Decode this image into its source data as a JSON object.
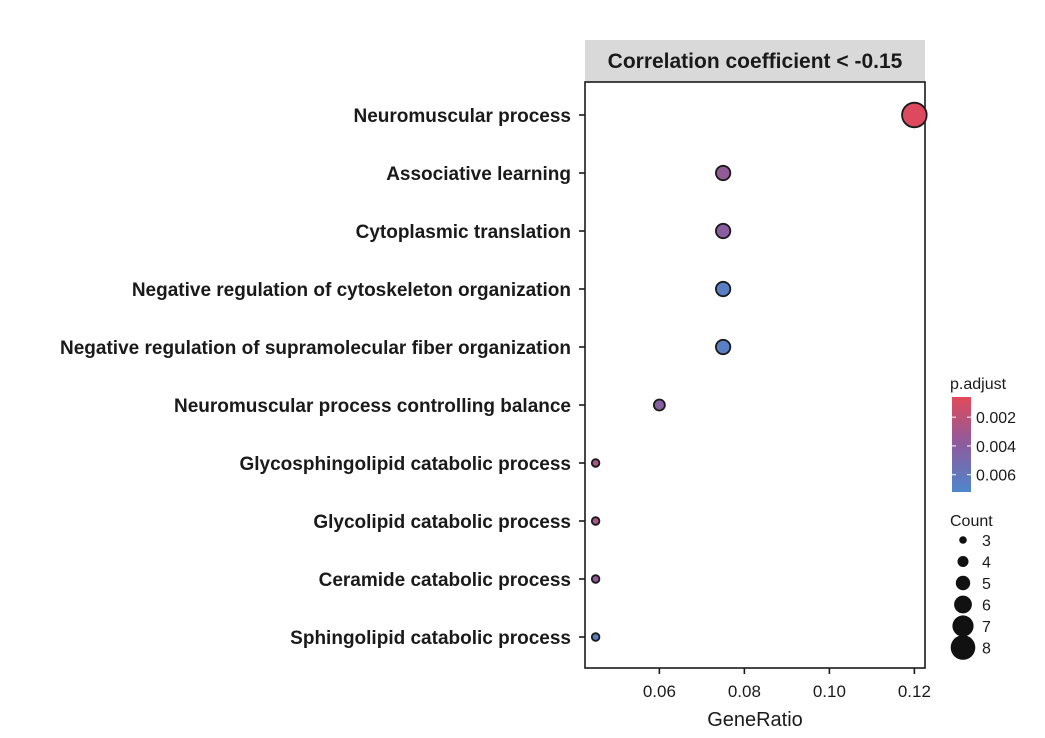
{
  "chart_data": {
    "type": "scatter",
    "facet_title": "Correlation coefficient < -0.15",
    "xlabel": "GeneRatio",
    "ylabel": "",
    "xlim": [
      0.0425,
      0.1225
    ],
    "xticks": [
      0.06,
      0.08,
      0.1,
      0.12
    ],
    "xtick_labels": [
      "0.06",
      "0.08",
      "0.10",
      "0.12"
    ],
    "grid": false,
    "legend_position": "right",
    "categories": [
      "Neuromuscular process",
      "Associative learning",
      "Cytoplasmic translation",
      "Negative regulation of cytoskeleton organization",
      "Negative regulation of supramolecular fiber organization",
      "Neuromuscular process controlling balance",
      "Glycosphingolipid catabolic process",
      "Glycolipid catabolic process",
      "Ceramide catabolic process",
      "Sphingolipid catabolic process"
    ],
    "points": [
      {
        "term": "Neuromuscular process",
        "gene_ratio": 0.12,
        "count": 8,
        "p_adjust": 0.0008
      },
      {
        "term": "Associative learning",
        "gene_ratio": 0.075,
        "count": 5,
        "p_adjust": 0.0036
      },
      {
        "term": "Cytoplasmic translation",
        "gene_ratio": 0.075,
        "count": 5,
        "p_adjust": 0.004
      },
      {
        "term": "Negative regulation of cytoskeleton organization",
        "gene_ratio": 0.075,
        "count": 5,
        "p_adjust": 0.0066
      },
      {
        "term": "Negative regulation of supramolecular fiber organization",
        "gene_ratio": 0.075,
        "count": 5,
        "p_adjust": 0.0066
      },
      {
        "term": "Neuromuscular process controlling balance",
        "gene_ratio": 0.06,
        "count": 4,
        "p_adjust": 0.0042
      },
      {
        "term": "Glycosphingolipid catabolic process",
        "gene_ratio": 0.045,
        "count": 3,
        "p_adjust": 0.0028
      },
      {
        "term": "Glycolipid catabolic process",
        "gene_ratio": 0.045,
        "count": 3,
        "p_adjust": 0.0028
      },
      {
        "term": "Ceramide catabolic process",
        "gene_ratio": 0.045,
        "count": 3,
        "p_adjust": 0.0036
      },
      {
        "term": "Sphingolipid catabolic process",
        "gene_ratio": 0.045,
        "count": 3,
        "p_adjust": 0.0065
      }
    ],
    "color_legend": {
      "title": "p.adjust",
      "range": [
        0.0006,
        0.0072
      ],
      "ticks": [
        0.002,
        0.004,
        0.006
      ],
      "tick_labels": [
        "0.002",
        "0.004",
        "0.006"
      ],
      "low_color": "#e2495a",
      "mid_color": "#8b5c9e",
      "high_color": "#4e86cc"
    },
    "size_legend": {
      "title": "Count",
      "values": [
        3,
        4,
        5,
        6,
        7,
        8
      ],
      "labels": [
        "3",
        "4",
        "5",
        "6",
        "7",
        "8"
      ]
    }
  }
}
